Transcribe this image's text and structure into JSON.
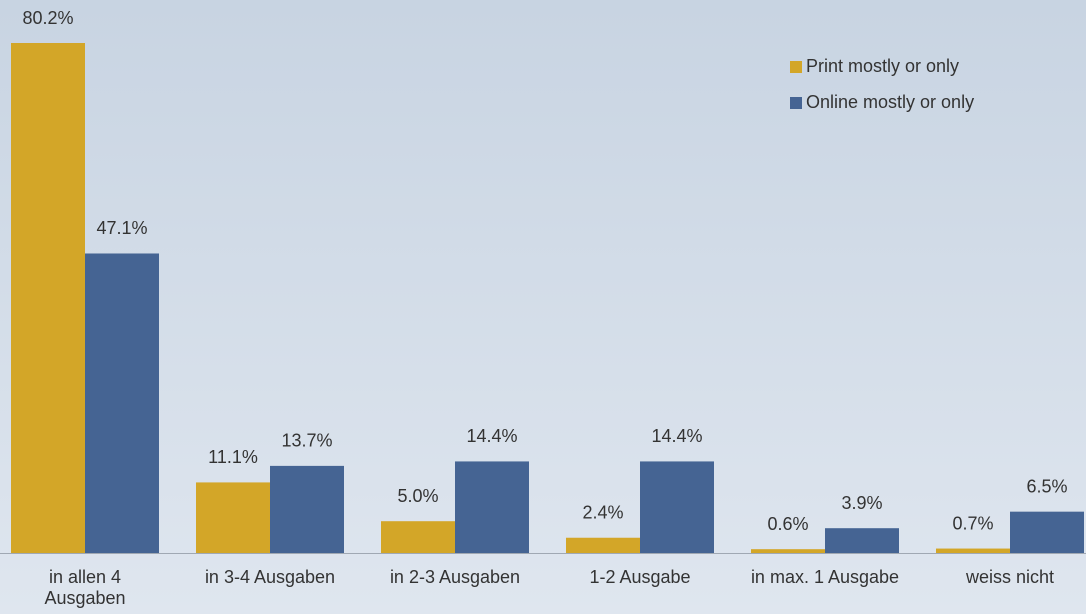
{
  "chart_data": {
    "type": "bar",
    "categories": [
      "in allen 4 Ausgaben",
      "in 3-4 Ausgaben",
      "in 2-3 Ausgaben",
      "1-2 Ausgabe",
      "in max. 1 Ausgabe",
      "weiss nicht"
    ],
    "series": [
      {
        "name": "Print mostly or only",
        "color": "#d3a628",
        "values": [
          80.2,
          11.1,
          5.0,
          2.4,
          0.6,
          0.7
        ],
        "value_labels": [
          "80.2%",
          "11.1%",
          "5.0%",
          "2.4%",
          "0.6%",
          "0.7%"
        ]
      },
      {
        "name": "Online mostly or only",
        "color": "#456493",
        "values": [
          47.1,
          13.7,
          14.4,
          14.4,
          3.9,
          6.5
        ],
        "value_labels": [
          "47.1%",
          "13.7%",
          "14.4%",
          "14.4%",
          "3.9%",
          "6.5%"
        ]
      }
    ],
    "legend": "top-right"
  }
}
